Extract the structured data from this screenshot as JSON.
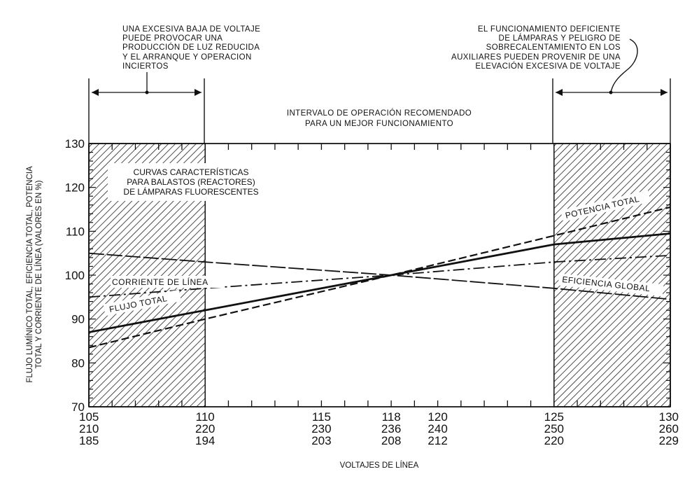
{
  "chart_data": {
    "type": "line",
    "ylabel_lines": [
      "FLUJO LUMÍNICO TOTAL, EFICIENCIA TOTAL, POTENCIA",
      "TOTAL Y CORRIENTE DE LÍNEA (VALORES EN %)"
    ],
    "xlabel": "VOLTAJES DE LÍNEA",
    "ylim": [
      70,
      130
    ],
    "xlim": [
      105,
      130
    ],
    "yticks": [
      70,
      80,
      90,
      100,
      110,
      120,
      130
    ],
    "xticks": [
      {
        "v": 105,
        "rows": [
          "105",
          "210",
          "185"
        ]
      },
      {
        "v": 110,
        "rows": [
          "110",
          "220",
          "194"
        ]
      },
      {
        "v": 115,
        "rows": [
          "115",
          "230",
          "203"
        ]
      },
      {
        "v": 118,
        "rows": [
          "118",
          "236",
          "208"
        ]
      },
      {
        "v": 120,
        "rows": [
          "120",
          "240",
          "212"
        ]
      },
      {
        "v": 125,
        "rows": [
          "125",
          "250",
          "220"
        ]
      },
      {
        "v": 130,
        "rows": [
          "130",
          "260",
          "229"
        ]
      }
    ],
    "shaded_ranges": [
      [
        105,
        110
      ],
      [
        125,
        130
      ]
    ],
    "annotations": {
      "left": [
        "UNA EXCESIVA BAJA DE VOLTAJE",
        "PUEDE PROVOCAR UNA",
        "PRODUCCIÓN DE LUZ REDUCIDA",
        "Y EL ARRANQUE Y OPERACION",
        "INCIERTOS"
      ],
      "right": [
        "EL FUNCIONAMIENTO DEFICIENTE",
        "DE LÁMPARAS Y PELIGRO DE",
        "SOBRECALENTAMIENTO EN LOS",
        "AUXILIARES PUEDEN PROVENIR DE UNA",
        "ELEVACIÓN EXCESIVA DE VOLTAJE"
      ],
      "center": [
        "INTERVALO DE OPERACIÓN RECOMENDADO",
        "PARA UN MEJOR FUNCIONAMIENTO"
      ],
      "box": [
        "CURVAS CARACTERÍSTICAS",
        "PARA BALASTOS (REACTORES)",
        "DE LÁMPARAS FLUORESCENTES"
      ]
    },
    "series": [
      {
        "name": "POTENCIA TOTAL",
        "style": "dashed",
        "x": [
          105,
          110,
          118,
          125,
          130
        ],
        "y": [
          83.5,
          90,
          100,
          109,
          115.5
        ]
      },
      {
        "name": "FLUJO TOTAL",
        "style": "solid-thick",
        "x": [
          105,
          110,
          118,
          125,
          130
        ],
        "y": [
          87,
          92,
          100,
          107,
          109.5
        ]
      },
      {
        "name": "CORRIENTE DE LÍNEA",
        "style": "dash-dot",
        "x": [
          105,
          110,
          118,
          125,
          130
        ],
        "y": [
          95,
          97,
          100,
          103,
          104.5
        ]
      },
      {
        "name": "EFICIENCIA GLOBAL",
        "style": "long-dash",
        "x": [
          105,
          110,
          118,
          125,
          130
        ],
        "y": [
          105,
          103,
          100,
          97,
          94.5
        ]
      }
    ]
  }
}
